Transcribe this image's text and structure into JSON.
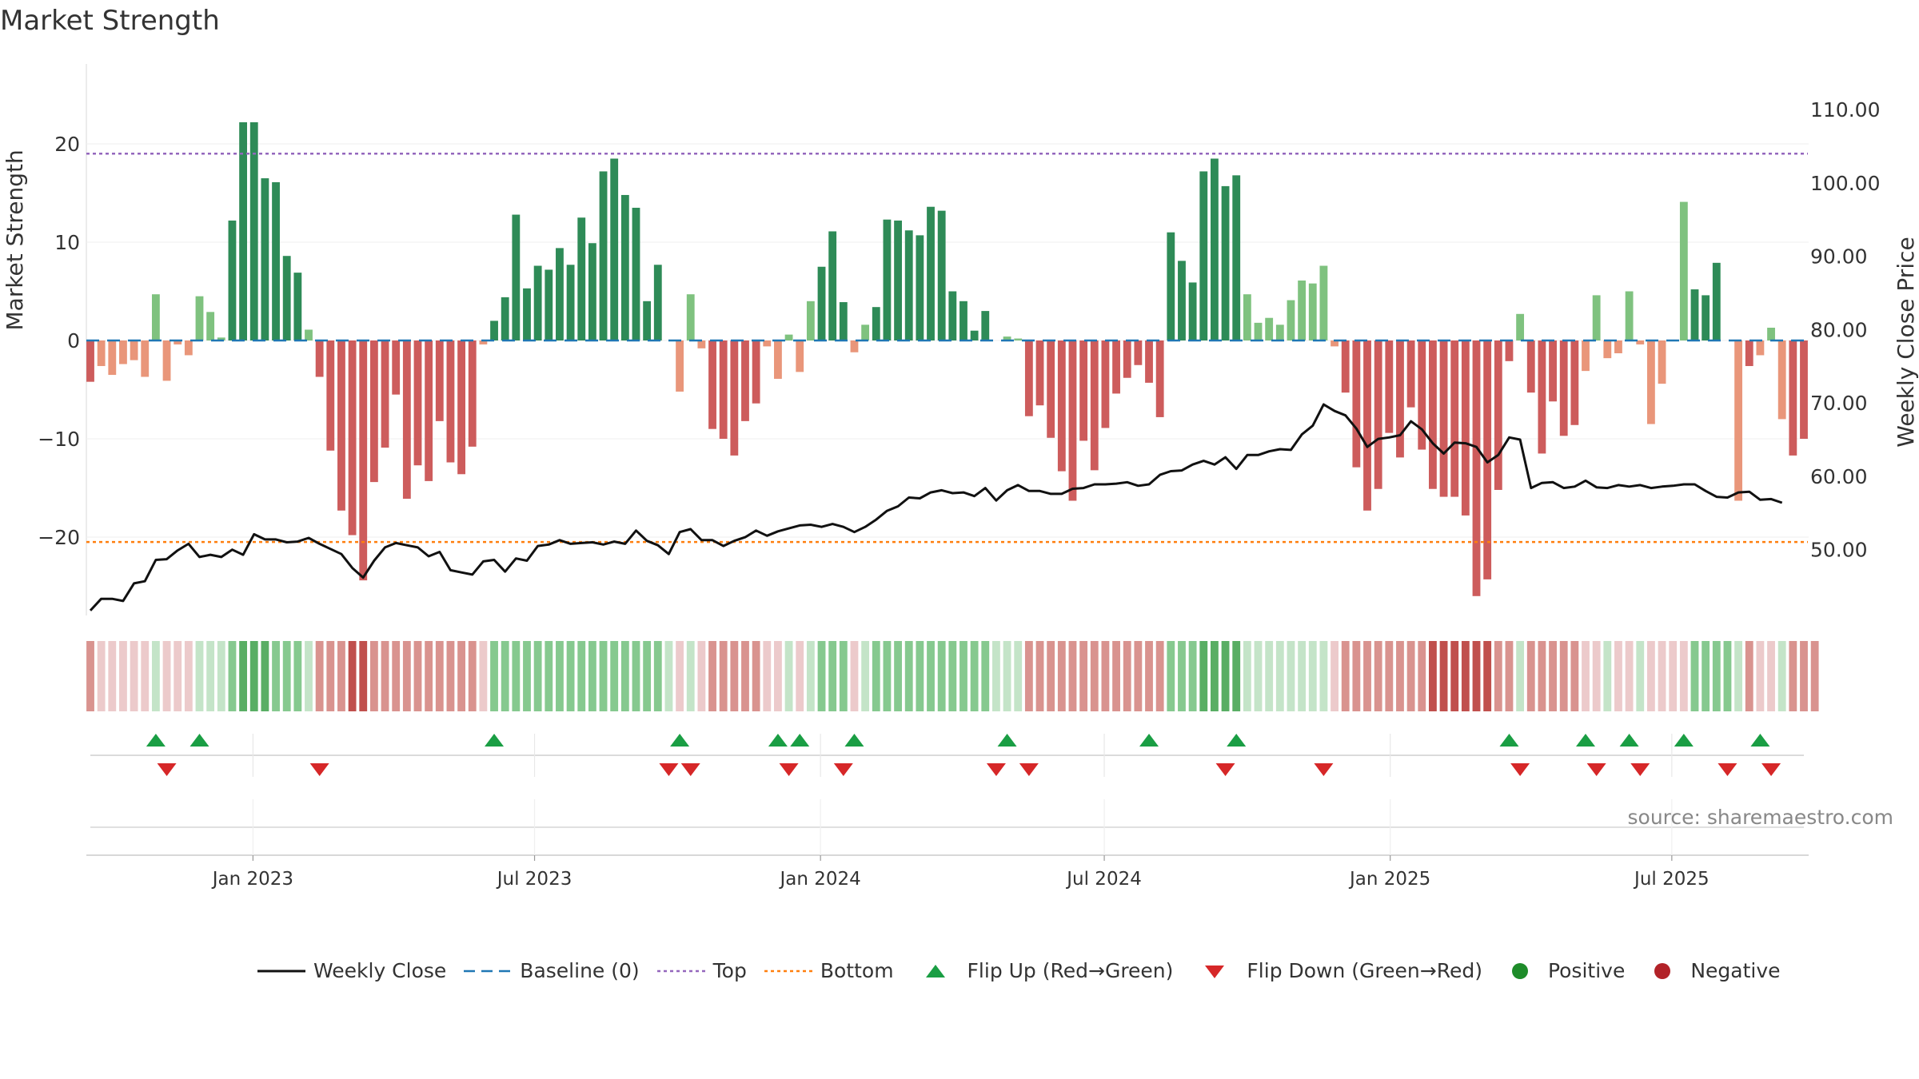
{
  "title": "Market Strength",
  "source_label": "source: sharemaestro.com",
  "colors": {
    "strong_pos": "#2e8b57",
    "weak_pos": "#7fc27f",
    "strong_neg": "#cd5c5c",
    "weak_neg": "#e9967a",
    "price_line": "#111111",
    "baseline": "#1f77b4",
    "top": "#9467bd",
    "bottom": "#ff7f0e",
    "flip_up": "#1a9e44",
    "flip_down": "#d62728",
    "positive": "#1e8c2a",
    "negative": "#b22228"
  },
  "legend": [
    {
      "label": "Weekly Close",
      "icon": "line-icon"
    },
    {
      "label": "Baseline (0)",
      "icon": "dashed-line-icon"
    },
    {
      "label": "Top",
      "icon": "dotted-line-icon"
    },
    {
      "label": "Bottom",
      "icon": "dotted-line-icon"
    },
    {
      "label": "Flip Up (Red→Green)",
      "icon": "triangle-up-icon"
    },
    {
      "label": "Flip Down (Green→Red)",
      "icon": "triangle-down-icon"
    },
    {
      "label": "Positive",
      "icon": "circle-icon"
    },
    {
      "label": "Negative",
      "icon": "circle-icon"
    }
  ],
  "chart_data": {
    "type": "bar",
    "title": "Market Strength",
    "ylabel": "Market Strength",
    "y2label": "Weekly Close Price",
    "ylim": [
      -28,
      28
    ],
    "y2lim": [
      41.7,
      115.0
    ],
    "yticks": [
      -20,
      -10,
      0,
      10,
      20
    ],
    "ytick_labels": [
      "−20",
      "−10",
      "0",
      "10",
      "20"
    ],
    "y2ticks": [
      50,
      60,
      70,
      80,
      90,
      100,
      110
    ],
    "y2tick_labels": [
      "50.00",
      "60.00",
      "70.00",
      "80.00",
      "90.00",
      "100.00",
      "110.00"
    ],
    "top_level": 19,
    "bottom_level": -20.5,
    "baseline": 0,
    "x_start_week": 0,
    "xticks": [
      {
        "week": 14.9,
        "label": "Jan 2023"
      },
      {
        "week": 40.7,
        "label": "Jul 2023"
      },
      {
        "week": 66.9,
        "label": "Jan 2024"
      },
      {
        "week": 92.9,
        "label": "Jul 2024"
      },
      {
        "week": 119.1,
        "label": "Jan 2025"
      },
      {
        "week": 144.9,
        "label": "Jul 2025"
      }
    ],
    "series": [
      {
        "name": "Market Strength",
        "type": "bar",
        "values": [
          -4.2,
          -2.6,
          -3.5,
          -2.4,
          -2.0,
          -3.7,
          4.7,
          -4.1,
          -0.4,
          -1.5,
          4.5,
          2.9,
          0.3,
          12.2,
          22.2,
          22.2,
          16.5,
          16.1,
          8.6,
          6.9,
          1.1,
          -3.7,
          -11.2,
          -17.3,
          -19.8,
          -24.4,
          -14.4,
          -10.9,
          -5.5,
          -16.1,
          -12.7,
          -14.3,
          -8.2,
          -12.4,
          -13.6,
          -10.8,
          -0.4,
          2.0,
          4.4,
          12.8,
          5.3,
          7.6,
          7.2,
          9.4,
          7.7,
          12.5,
          9.9,
          17.2,
          18.5,
          14.8,
          13.5,
          4.0,
          7.7,
          0.0,
          -5.2,
          4.7,
          -0.8,
          -9.0,
          -10.0,
          -11.7,
          -8.2,
          -6.4,
          -0.6,
          -3.9,
          0.6,
          -3.2,
          4.0,
          7.5,
          11.1,
          3.9,
          -1.2,
          1.6,
          3.4,
          12.3,
          12.2,
          11.2,
          10.7,
          13.6,
          13.2,
          5.0,
          4.0,
          1.0,
          3.0,
          0.0,
          0.4,
          0.2,
          -7.7,
          -6.6,
          -9.9,
          -13.3,
          -16.3,
          -10.2,
          -13.2,
          -8.9,
          -5.4,
          -3.8,
          -2.5,
          -4.3,
          -7.8,
          11.0,
          8.1,
          5.9,
          17.2,
          18.5,
          15.7,
          16.8,
          4.7,
          1.8,
          2.3,
          1.6,
          4.1,
          6.1,
          5.8,
          7.6,
          -0.6,
          -5.3,
          -12.9,
          -17.3,
          -15.1,
          -9.4,
          -11.9,
          -6.8,
          -11.1,
          -15.1,
          -15.9,
          -15.9,
          -17.8,
          -26.0,
          -24.3,
          -15.2,
          -2.1,
          2.7,
          -5.3,
          -11.5,
          -6.2,
          -9.7,
          -8.6,
          -3.1,
          4.6,
          -1.8,
          -1.3,
          5.0,
          -0.4,
          -8.5,
          -4.4,
          0.0,
          14.1,
          5.2,
          4.6,
          7.9,
          0.0,
          -16.3,
          -2.6,
          -1.5,
          1.3,
          -8.0,
          -11.7,
          -10.0
        ]
      },
      {
        "name": "Weekly Close",
        "type": "line",
        "axis": "right",
        "values": [
          41.7,
          43.3,
          43.3,
          43.0,
          45.4,
          45.7,
          48.6,
          48.7,
          49.9,
          50.8,
          49.0,
          49.3,
          49.0,
          50.0,
          49.3,
          52.1,
          51.4,
          51.4,
          51.0,
          51.1,
          51.6,
          50.8,
          50.1,
          49.4,
          47.5,
          46.2,
          48.5,
          50.3,
          50.9,
          50.6,
          50.3,
          49.1,
          49.7,
          47.2,
          46.9,
          46.6,
          48.4,
          48.6,
          47.0,
          48.8,
          48.5,
          50.5,
          50.7,
          51.3,
          50.8,
          50.9,
          51.0,
          50.7,
          51.1,
          50.8,
          52.6,
          51.2,
          50.6,
          49.4,
          52.4,
          52.8,
          51.3,
          51.3,
          50.5,
          51.2,
          51.7,
          52.6,
          51.9,
          52.5,
          52.9,
          53.3,
          53.4,
          53.1,
          53.5,
          53.1,
          52.4,
          53.1,
          54.1,
          55.3,
          55.9,
          57.1,
          57.0,
          57.8,
          58.1,
          57.7,
          57.8,
          57.3,
          58.4,
          56.7,
          58.1,
          58.8,
          58.0,
          58.0,
          57.6,
          57.6,
          58.3,
          58.4,
          58.9,
          58.9,
          59.0,
          59.2,
          58.7,
          58.9,
          60.2,
          60.7,
          60.8,
          61.6,
          62.1,
          61.6,
          62.6,
          61.0,
          62.9,
          62.9,
          63.4,
          63.7,
          63.6,
          65.7,
          66.9,
          69.8,
          68.9,
          68.3,
          66.5,
          64.0,
          65.1,
          65.3,
          65.6,
          67.5,
          66.4,
          64.5,
          63.1,
          64.6,
          64.5,
          64.0,
          61.9,
          62.9,
          65.3,
          65.0,
          58.4,
          59.1,
          59.2,
          58.4,
          58.6,
          59.4,
          58.5,
          58.4,
          58.8,
          58.6,
          58.8,
          58.4,
          58.6,
          58.7,
          58.9,
          58.9,
          58.0,
          57.2,
          57.1,
          57.8,
          57.9,
          56.8,
          56.9,
          56.4
        ]
      },
      {
        "name": "Regime",
        "type": "band",
        "values": [
          -2,
          -1,
          -1,
          -1,
          -1,
          -1,
          1,
          -1,
          -1,
          -1,
          1,
          1,
          1,
          2,
          3,
          3,
          3,
          2,
          2,
          2,
          1,
          -2,
          -2,
          -2,
          -3,
          -3,
          -2,
          -2,
          -2,
          -2,
          -2,
          -2,
          -2,
          -2,
          -2,
          -2,
          -1,
          2,
          2,
          2,
          2,
          2,
          2,
          2,
          2,
          2,
          2,
          2,
          2,
          2,
          2,
          2,
          2,
          1,
          -1,
          1,
          -1,
          -2,
          -2,
          -2,
          -2,
          -2,
          -1,
          -1,
          1,
          -1,
          1,
          2,
          2,
          2,
          -1,
          1,
          2,
          2,
          2,
          2,
          2,
          2,
          2,
          2,
          2,
          2,
          2,
          1,
          1,
          1,
          -2,
          -2,
          -2,
          -2,
          -2,
          -2,
          -2,
          -2,
          -2,
          -2,
          -2,
          -2,
          -2,
          2,
          2,
          2,
          3,
          3,
          3,
          3,
          1,
          1,
          1,
          1,
          1,
          1,
          1,
          1,
          -1,
          -2,
          -2,
          -2,
          -2,
          -2,
          -2,
          -2,
          -2,
          -3,
          -3,
          -3,
          -3,
          -3,
          -3,
          -2,
          -2,
          1,
          -2,
          -2,
          -2,
          -2,
          -2,
          -1,
          -1,
          1,
          -1,
          -1,
          1,
          -1,
          -1,
          -1,
          -1,
          2,
          2,
          2,
          2,
          1,
          -2,
          -1,
          -1,
          1,
          -2,
          -2,
          -2
        ]
      }
    ],
    "flip_up_weeks": [
      6,
      10,
      37,
      54,
      63,
      65,
      70,
      84,
      97,
      105,
      130,
      137,
      141,
      146,
      153
    ],
    "flip_down_weeks": [
      7,
      21,
      53,
      55,
      64,
      69,
      83,
      86,
      104,
      113,
      131,
      138,
      142,
      150,
      154
    ]
  }
}
